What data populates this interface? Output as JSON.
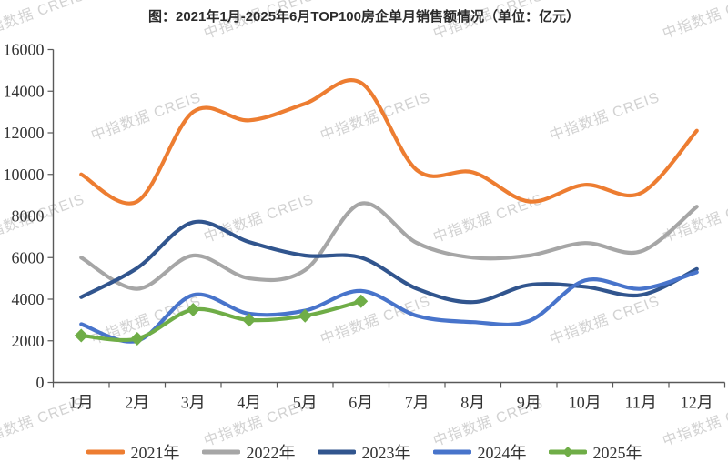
{
  "title": "图：2021年1月-2025年6月TOP100房企单月销售额情况（单位：亿元）",
  "watermark": {
    "text": "中指数据 CREIS",
    "color": "#d2d2d2"
  },
  "chart_data": {
    "type": "line",
    "smooth": true,
    "grid": false,
    "legend_position": "bottom",
    "unit": "亿元",
    "categories": [
      "1月",
      "2月",
      "3月",
      "4月",
      "5月",
      "6月",
      "7月",
      "8月",
      "9月",
      "10月",
      "11月",
      "12月"
    ],
    "ylim": [
      0,
      16000
    ],
    "yticks": [
      0,
      2000,
      4000,
      6000,
      8000,
      10000,
      12000,
      14000,
      16000
    ],
    "xlabel": "",
    "ylabel": "",
    "series": [
      {
        "name": "2021年",
        "color": "#ED7D31",
        "marker": "none",
        "values": [
          10000,
          8700,
          13000,
          12600,
          13400,
          14400,
          10200,
          10100,
          8700,
          9500,
          9100,
          12100
        ]
      },
      {
        "name": "2022年",
        "color": "#A6A6A6",
        "marker": "none",
        "values": [
          6000,
          4500,
          6100,
          5000,
          5400,
          8600,
          6700,
          6000,
          6100,
          6700,
          6300,
          8450
        ]
      },
      {
        "name": "2023年",
        "color": "#31558E",
        "marker": "none",
        "values": [
          4100,
          5500,
          7700,
          6750,
          6100,
          6000,
          4500,
          3860,
          4680,
          4600,
          4200,
          5450
        ]
      },
      {
        "name": "2024年",
        "color": "#4874CB",
        "marker": "none",
        "values": [
          2800,
          2000,
          4200,
          3300,
          3450,
          4400,
          3200,
          2900,
          2950,
          4900,
          4500,
          5300
        ]
      },
      {
        "name": "2025年",
        "color": "#6FAD47",
        "marker": "diamond",
        "values": [
          2250,
          2100,
          3500,
          3000,
          3200,
          3900
        ]
      }
    ]
  }
}
